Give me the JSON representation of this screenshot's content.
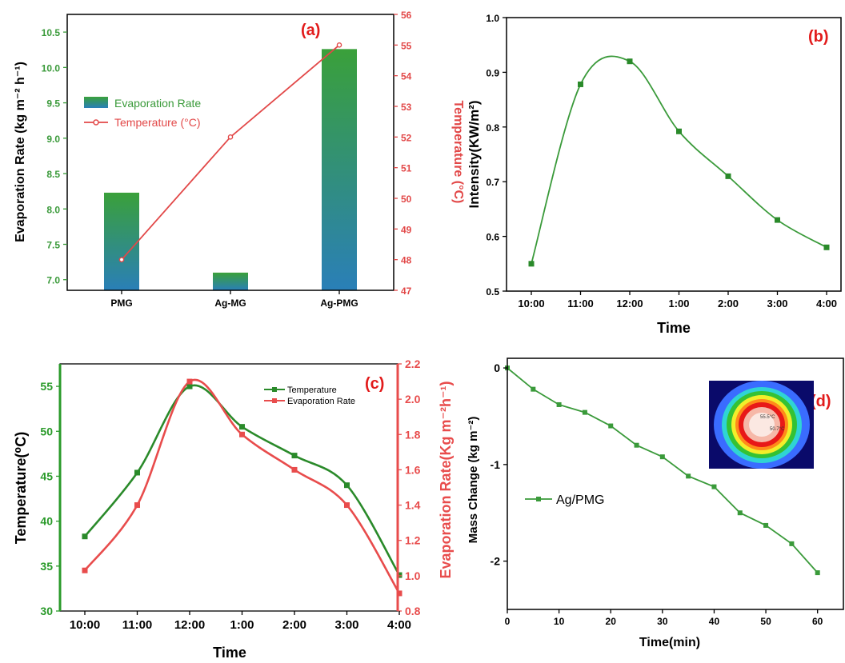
{
  "colors": {
    "green": "#3a9a3a",
    "red": "#e24848",
    "bar_top": "#3aa03a",
    "bar_bottom": "#2a7fb8",
    "black": "#000000"
  },
  "chart_data": [
    {
      "id": "a",
      "panel_label": "(a)",
      "type": "bar",
      "categories": [
        "PMG",
        "Ag-MG",
        "Ag-PMG"
      ],
      "series": [
        {
          "name": "Evaporation Rate",
          "type": "bar",
          "axis": "left",
          "values": [
            8.23,
            7.1,
            10.26
          ]
        },
        {
          "name": "Temperature (°C)",
          "type": "line",
          "axis": "right",
          "values": [
            48,
            52,
            55
          ]
        }
      ],
      "ylabel": "Evaporation Rate (kg m⁻² h⁻¹)",
      "ylabel_right": "Temperature (°C)",
      "ylim": [
        6.85,
        10.75
      ],
      "yticks": [
        "7.0",
        "7.5",
        "8.0",
        "8.5",
        "9.0",
        "9.5",
        "10.0",
        "10.5"
      ],
      "ylim_right": [
        47,
        56
      ],
      "yticks_right": [
        "47",
        "48",
        "49",
        "50",
        "51",
        "52",
        "53",
        "54",
        "55",
        "56"
      ],
      "legend": [
        "Evaporation Rate",
        "Temperature (°C)"
      ],
      "legend_position": "center-left"
    },
    {
      "id": "b",
      "panel_label": "(b)",
      "type": "line",
      "categories": [
        "10:00",
        "11:00",
        "12:00",
        "1:00",
        "2:00",
        "3:00",
        "4:00"
      ],
      "series": [
        {
          "name": "",
          "values": [
            0.55,
            0.878,
            0.92,
            0.792,
            0.71,
            0.63,
            0.58
          ]
        }
      ],
      "xlabel": "Time",
      "ylabel": "Intensity(KW/m²)",
      "ylim": [
        0.5,
        1.0
      ],
      "yticks": [
        "0.5",
        "0.6",
        "0.7",
        "0.8",
        "0.9",
        "1.0"
      ]
    },
    {
      "id": "c",
      "panel_label": "(c)",
      "type": "line",
      "categories": [
        "10:00",
        "11:00",
        "12:00",
        "1:00",
        "2:00",
        "3:00",
        "4:00"
      ],
      "series": [
        {
          "name": "Temperature",
          "axis": "left",
          "values": [
            38.3,
            45.4,
            55,
            50.5,
            47.3,
            44,
            34
          ]
        },
        {
          "name": "Evaporation Rate",
          "axis": "right",
          "values": [
            1.03,
            1.4,
            2.1,
            1.8,
            1.6,
            1.4,
            0.9
          ]
        }
      ],
      "xlabel": "Time",
      "ylabel": "Temperature(⁰C)",
      "ylabel_right": "Evaporation Rate(Kg m⁻²h⁻¹)",
      "ylim": [
        30,
        57.5
      ],
      "yticks": [
        "30",
        "35",
        "40",
        "45",
        "50",
        "55"
      ],
      "ylim_right": [
        0.8,
        2.2
      ],
      "yticks_right": [
        "0.8",
        "1.0",
        "1.2",
        "1.4",
        "1.6",
        "1.8",
        "2.0",
        "2.2"
      ],
      "legend": [
        "Temperature",
        "Evaporation Rate"
      ],
      "legend_position": "top-right"
    },
    {
      "id": "d",
      "panel_label": "(d)",
      "type": "line",
      "x": [
        0,
        5,
        10,
        15,
        20,
        25,
        30,
        35,
        40,
        45,
        50,
        55,
        60
      ],
      "series": [
        {
          "name": "Ag/PMG",
          "values": [
            0,
            -0.22,
            -0.38,
            -0.46,
            -0.6,
            -0.8,
            -0.92,
            -1.12,
            -1.23,
            -1.5,
            -1.63,
            -1.82,
            -2.12
          ]
        }
      ],
      "xlabel": "Time(min)",
      "ylabel": "Mass Change (kg m⁻²)",
      "xlim": [
        0,
        65
      ],
      "xticks": [
        "0",
        "10",
        "20",
        "30",
        "40",
        "50",
        "60"
      ],
      "ylim": [
        -2.5,
        0.1
      ],
      "yticks": [
        "0",
        "-1",
        "-2"
      ],
      "legend": [
        "Ag/PMG"
      ],
      "legend_position": "center-left",
      "inset": {
        "labels": [
          "55.5°C",
          "50.7°C"
        ]
      }
    }
  ]
}
